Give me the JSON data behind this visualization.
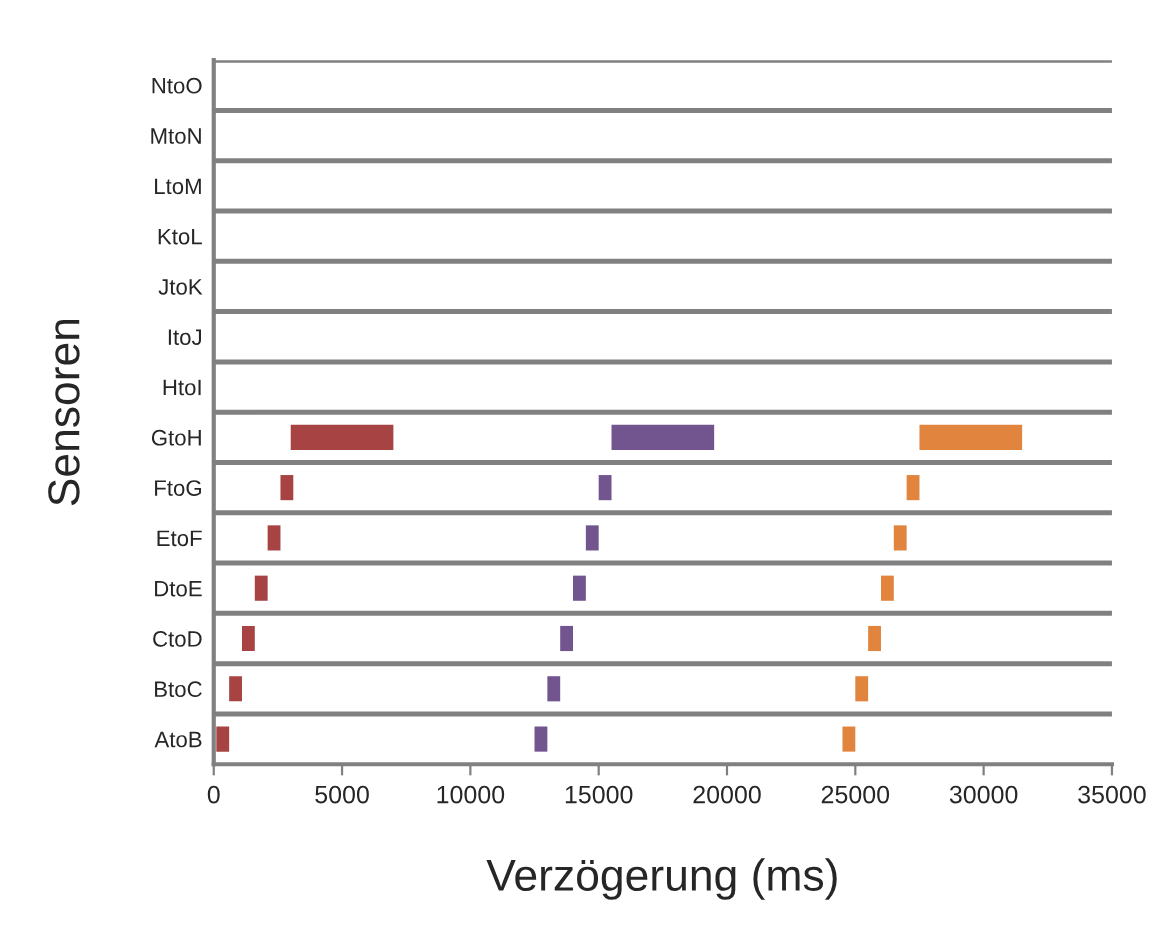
{
  "chart_data": {
    "type": "bar",
    "orientation": "horizontal",
    "xlabel": "Verzögerung (ms)",
    "ylabel": "Sensoren",
    "categories": [
      "NtoO",
      "MtoN",
      "LtoM",
      "KtoL",
      "JtoK",
      "ItoJ",
      "HtoI",
      "GtoH",
      "FtoG",
      "EtoF",
      "DtoE",
      "CtoD",
      "BtoC",
      "AtoB"
    ],
    "series": [
      {
        "color": "#a84343",
        "base": [
          null,
          null,
          null,
          null,
          null,
          null,
          null,
          3000,
          2600,
          2100,
          1600,
          1100,
          600,
          100
        ],
        "values": [
          null,
          null,
          null,
          null,
          null,
          null,
          null,
          4000,
          500,
          500,
          500,
          500,
          500,
          500
        ]
      },
      {
        "color": "#72548f",
        "base": [
          null,
          null,
          null,
          null,
          null,
          null,
          null,
          15500,
          15000,
          14500,
          14000,
          13500,
          13000,
          12500
        ],
        "values": [
          null,
          null,
          null,
          null,
          null,
          null,
          null,
          4000,
          500,
          500,
          500,
          500,
          500,
          500
        ]
      },
      {
        "color": "#e0843e",
        "base": [
          null,
          null,
          null,
          null,
          null,
          null,
          null,
          27500,
          27000,
          26500,
          26000,
          25500,
          25000,
          24500
        ],
        "values": [
          null,
          null,
          null,
          null,
          null,
          null,
          null,
          4000,
          500,
          500,
          500,
          500,
          500,
          500
        ]
      }
    ],
    "xlim": [
      0,
      35000
    ],
    "xticks": [
      0,
      5000,
      10000,
      15000,
      20000,
      25000,
      30000,
      35000
    ],
    "grid": "y",
    "legend": false
  }
}
